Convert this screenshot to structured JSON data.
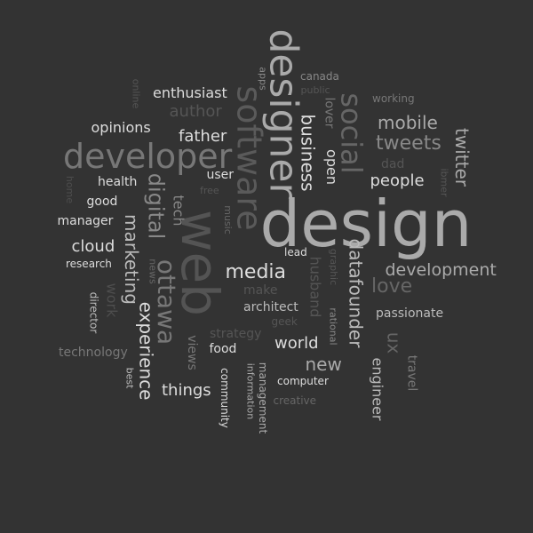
{
  "words": [
    {
      "text": "design",
      "size": 72,
      "color": "#aaaaaa",
      "rot": 0
    },
    {
      "text": "web",
      "size": 58,
      "color": "#545454",
      "rot": 90
    },
    {
      "text": "designer",
      "size": 44,
      "color": "#aaaaaa",
      "rot": 90
    },
    {
      "text": "developer",
      "size": 38,
      "color": "#777777",
      "rot": 0
    },
    {
      "text": "software",
      "size": 38,
      "color": "#5a5a5a",
      "rot": 90
    },
    {
      "text": "social",
      "size": 32,
      "color": "#666666",
      "rot": 90
    },
    {
      "text": "ottawa",
      "size": 28,
      "color": "#777777",
      "rot": 90
    },
    {
      "text": "digital",
      "size": 24,
      "color": "#888888",
      "rot": 90
    },
    {
      "text": "tweets",
      "size": 22,
      "color": "#888888",
      "rot": 0
    },
    {
      "text": "media",
      "size": 22,
      "color": "#dddddd",
      "rot": 0
    },
    {
      "text": "love",
      "size": 22,
      "color": "#666666",
      "rot": 0
    },
    {
      "text": "mobile",
      "size": 20,
      "color": "#aaaaaa",
      "rot": 0
    },
    {
      "text": "twitter",
      "size": 20,
      "color": "#aaaaaa",
      "rot": 90
    },
    {
      "text": "marketing",
      "size": 20,
      "color": "#bbbbbb",
      "rot": 90
    },
    {
      "text": "experience",
      "size": 20,
      "color": "#dddddd",
      "rot": 90
    },
    {
      "text": "datafounder",
      "size": 20,
      "color": "#bbbbbb",
      "rot": 90
    },
    {
      "text": "business",
      "size": 20,
      "color": "#dddddd",
      "rot": 90
    },
    {
      "text": "ux",
      "size": 20,
      "color": "#666666",
      "rot": 90
    },
    {
      "text": "new",
      "size": 20,
      "color": "#aaaaaa",
      "rot": 0
    },
    {
      "text": "development",
      "size": 19,
      "color": "#aaaaaa",
      "rot": 0
    },
    {
      "text": "people",
      "size": 18,
      "color": "#dddddd",
      "rot": 0
    },
    {
      "text": "father",
      "size": 18,
      "color": "#dddddd",
      "rot": 0
    },
    {
      "text": "cloud",
      "size": 18,
      "color": "#dddddd",
      "rot": 0
    },
    {
      "text": "world",
      "size": 18,
      "color": "#dddddd",
      "rot": 0
    },
    {
      "text": "things",
      "size": 18,
      "color": "#dddddd",
      "rot": 0
    },
    {
      "text": "author",
      "size": 18,
      "color": "#555555",
      "rot": 0
    },
    {
      "text": "opinions",
      "size": 16,
      "color": "#dddddd",
      "rot": 0
    },
    {
      "text": "enthusiast",
      "size": 16,
      "color": "#dddddd",
      "rot": 0
    },
    {
      "text": "tech",
      "size": 16,
      "color": "#888888",
      "rot": 90
    },
    {
      "text": "open",
      "size": 16,
      "color": "#dddddd",
      "rot": 90
    },
    {
      "text": "engineer",
      "size": 16,
      "color": "#bbbbbb",
      "rot": 90
    },
    {
      "text": "husband",
      "size": 16,
      "color": "#555555",
      "rot": 90
    },
    {
      "text": "work",
      "size": 16,
      "color": "#4e4e4e",
      "rot": 90
    },
    {
      "text": "lover",
      "size": 14,
      "color": "#777777",
      "rot": 90
    },
    {
      "text": "user",
      "size": 14,
      "color": "#dddddd",
      "rot": 0
    },
    {
      "text": "health",
      "size": 14,
      "color": "#dddddd",
      "rot": 0
    },
    {
      "text": "good",
      "size": 14,
      "color": "#dddddd",
      "rot": 0
    },
    {
      "text": "manager",
      "size": 14,
      "color": "#dddddd",
      "rot": 0
    },
    {
      "text": "architect",
      "size": 14,
      "color": "#bbbbbb",
      "rot": 0
    },
    {
      "text": "passionate",
      "size": 14,
      "color": "#bbbbbb",
      "rot": 0
    },
    {
      "text": "food",
      "size": 14,
      "color": "#dddddd",
      "rot": 0
    },
    {
      "text": "technology",
      "size": 14,
      "color": "#777777",
      "rot": 0
    },
    {
      "text": "dad",
      "size": 14,
      "color": "#555555",
      "rot": 0
    },
    {
      "text": "make",
      "size": 14,
      "color": "#555555",
      "rot": 0
    },
    {
      "text": "strategy",
      "size": 14,
      "color": "#555555",
      "rot": 0
    },
    {
      "text": "views",
      "size": 14,
      "color": "#777777",
      "rot": 90
    },
    {
      "text": "travel",
      "size": 14,
      "color": "#777777",
      "rot": 90
    },
    {
      "text": "lead",
      "size": 12,
      "color": "#dddddd",
      "rot": 0
    },
    {
      "text": "working",
      "size": 12,
      "color": "#777777",
      "rot": 0
    },
    {
      "text": "canada",
      "size": 12,
      "color": "#888888",
      "rot": 0
    },
    {
      "text": "public",
      "size": 11,
      "color": "#555555",
      "rot": 0
    },
    {
      "text": "research",
      "size": 12,
      "color": "#dddddd",
      "rot": 0
    },
    {
      "text": "director",
      "size": 12,
      "color": "#bbbbbb",
      "rot": 90
    },
    {
      "text": "computer",
      "size": 12,
      "color": "#dddddd",
      "rot": 0
    },
    {
      "text": "creative",
      "size": 12,
      "color": "#666666",
      "rot": 0
    },
    {
      "text": "geek",
      "size": 12,
      "color": "#555555",
      "rot": 0
    },
    {
      "text": "community",
      "size": 12,
      "color": "#dddddd",
      "rot": 90
    },
    {
      "text": "management",
      "size": 12,
      "color": "#aaaaaa",
      "rot": 90
    },
    {
      "text": "information",
      "size": 11,
      "color": "#aaaaaa",
      "rot": 90
    },
    {
      "text": "best",
      "size": 11,
      "color": "#bbbbbb",
      "rot": 90
    },
    {
      "text": "news",
      "size": 11,
      "color": "#666666",
      "rot": 90
    },
    {
      "text": "music",
      "size": 11,
      "color": "#666666",
      "rot": 90
    },
    {
      "text": "apps",
      "size": 11,
      "color": "#888888",
      "rot": 90
    },
    {
      "text": "free",
      "size": 11,
      "color": "#555555",
      "rot": 0
    },
    {
      "text": "rational",
      "size": 11,
      "color": "#888888",
      "rot": 90
    },
    {
      "text": "graphic",
      "size": 11,
      "color": "#555555",
      "rot": 90
    },
    {
      "text": "ibmer",
      "size": 11,
      "color": "#555555",
      "rot": 90
    },
    {
      "text": "home",
      "size": 11,
      "color": "#4e4e4e",
      "rot": 90
    },
    {
      "text": "online",
      "size": 11,
      "color": "#555555",
      "rot": 90
    }
  ]
}
